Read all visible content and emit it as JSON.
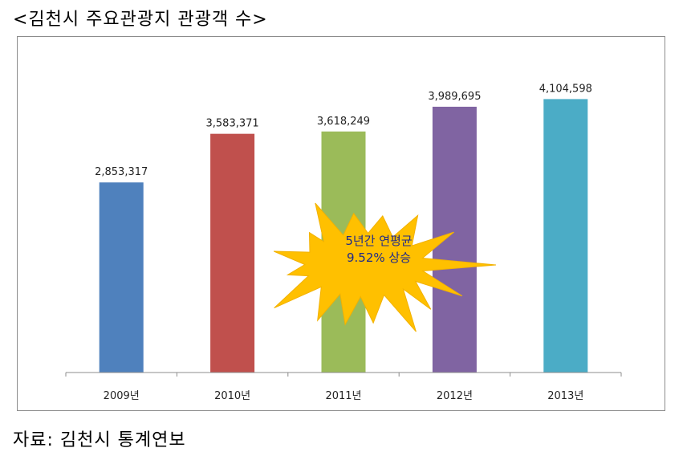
{
  "title": "<김천시 주요관광지 관광객 수>",
  "source": "자료: 김천시 통계연보",
  "chart_data": {
    "type": "bar",
    "categories": [
      "2009년",
      "2010년",
      "2011년",
      "2012년",
      "2013년"
    ],
    "values": [
      2853317,
      3583371,
      3618249,
      3989695,
      4104598
    ],
    "value_labels": [
      "2,853,317",
      "3,583,371",
      "3,618,249",
      "3,989,695",
      "4,104,598"
    ],
    "colors": [
      "#4f81bd",
      "#c0504d",
      "#9bbb59",
      "#8064a2",
      "#4bacc6"
    ],
    "ylim": [
      0,
      4700000
    ],
    "grid": false,
    "legend": "none",
    "annotation": {
      "line1": "5년간 연평균",
      "line2": "9.52% 상승",
      "shape": "starburst",
      "fill": "#ffc000"
    }
  }
}
